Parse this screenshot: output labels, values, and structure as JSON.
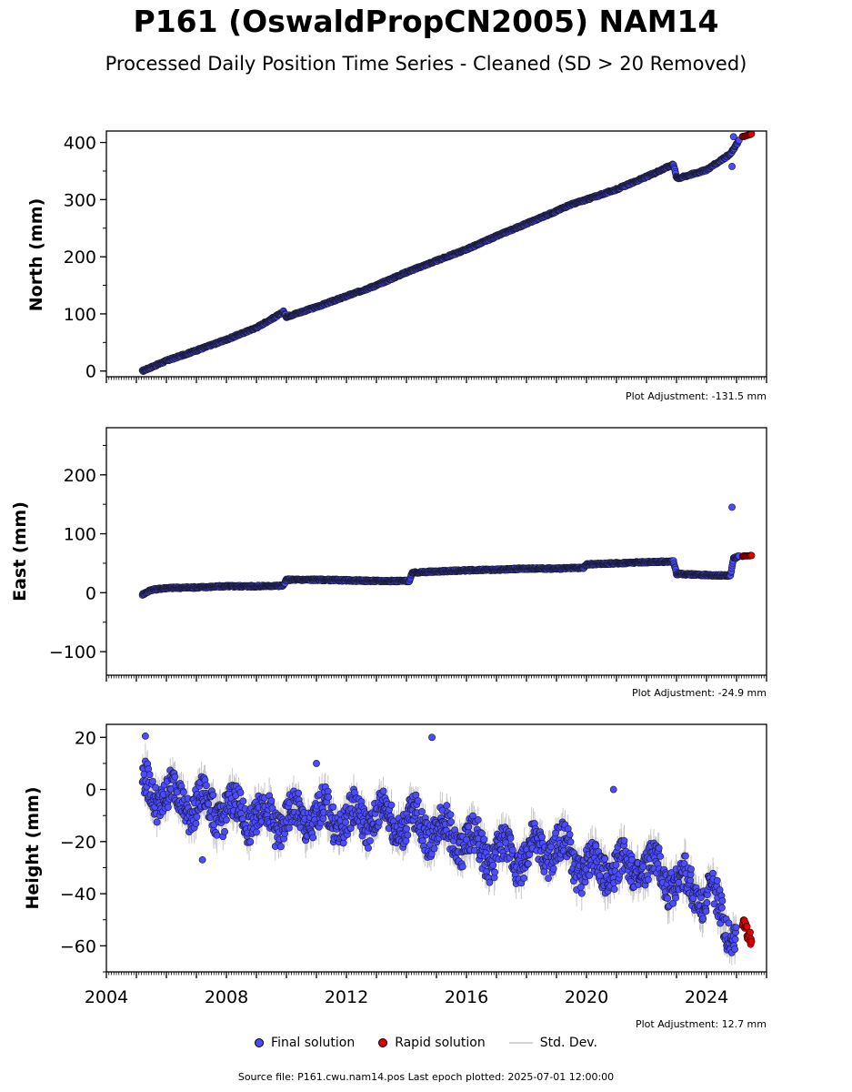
{
  "title": "P161 (OswaldPropCN2005) NAM14",
  "subtitle": "Processed Daily Position Time Series - Cleaned (SD > 20 Removed)",
  "footer": "Source file: P161.cwu.nam14.pos  Last epoch plotted: 2025-07-01 12:00:00",
  "legend": {
    "final_label": "Final solution",
    "rapid_label": "Rapid solution",
    "std_label": "Std. Dev.",
    "final_color": "#4b4bff",
    "rapid_color": "#e00000",
    "std_color": "#c8c8c8"
  },
  "chart_data": [
    {
      "type": "scatter",
      "ylabel": "North (mm)",
      "adjustment": "Plot Adjustment: -131.5 mm",
      "xlim": [
        2004,
        2026
      ],
      "ylim": [
        -10,
        420
      ],
      "yticks": [
        0,
        100,
        200,
        300,
        400
      ],
      "series": [
        {
          "name": "Final solution",
          "x": [
            2005.2,
            2006,
            2007,
            2008,
            2009,
            2009.8,
            2009.9,
            2010,
            2011,
            2012,
            2013,
            2014,
            2015,
            2016,
            2017,
            2018,
            2019,
            2019.4,
            2020,
            2021,
            2022,
            2022.9,
            2023.0,
            2023.1,
            2024,
            2024.8,
            2025.1
          ],
          "y": [
            0,
            18,
            36,
            55,
            76,
            100,
            104,
            95,
            112,
            131,
            150,
            173,
            193,
            213,
            236,
            258,
            280,
            290,
            300,
            318,
            340,
            362,
            338,
            338,
            352,
            380,
            405
          ]
        },
        {
          "name": "Rapid solution",
          "x": [
            2025.2,
            2025.5
          ],
          "y": [
            410,
            415
          ]
        }
      ],
      "outliers": [
        {
          "x": 2024.85,
          "y": 358
        },
        {
          "x": 2024.9,
          "y": 410
        }
      ]
    },
    {
      "type": "scatter",
      "ylabel": "East (mm)",
      "adjustment": "Plot Adjustment: -24.9 mm",
      "xlim": [
        2004,
        2026
      ],
      "ylim": [
        -140,
        280
      ],
      "yticks": [
        -100,
        0,
        100,
        200
      ],
      "series": [
        {
          "name": "Final solution",
          "x": [
            2005.2,
            2005.5,
            2006,
            2007,
            2008,
            2009,
            2009.9,
            2010,
            2011,
            2012,
            2013,
            2014.1,
            2014.2,
            2015,
            2016,
            2017,
            2018,
            2019,
            2019.9,
            2020,
            2021,
            2022,
            2022.9,
            2023,
            2024,
            2024.8,
            2024.9,
            2025.1
          ],
          "y": [
            -3,
            5,
            8,
            9,
            11,
            11,
            12,
            22,
            22,
            21,
            20,
            20,
            34,
            36,
            38,
            39,
            41,
            41,
            42,
            48,
            50,
            52,
            53,
            32,
            30,
            29,
            58,
            62
          ]
        },
        {
          "name": "Rapid solution",
          "x": [
            2025.2,
            2025.5
          ],
          "y": [
            62,
            63
          ]
        }
      ],
      "outliers": [
        {
          "x": 2024.85,
          "y": 145
        }
      ]
    },
    {
      "type": "scatter",
      "ylabel": "Height (mm)",
      "adjustment": "Plot Adjustment: 12.7 mm",
      "xlim": [
        2004,
        2026
      ],
      "ylim": [
        -70,
        25
      ],
      "yticks": [
        -60,
        -40,
        -20,
        0,
        20
      ],
      "xticks": [
        2004,
        2008,
        2012,
        2016,
        2020,
        2024
      ],
      "series": [
        {
          "name": "Final solution",
          "x": [
            2005.2,
            2006,
            2007,
            2008,
            2009,
            2010,
            2011,
            2012,
            2013,
            2014,
            2015,
            2016,
            2017,
            2018,
            2019,
            2020,
            2021,
            2022,
            2023,
            2024,
            2025
          ],
          "y": [
            0,
            -2,
            -6,
            -8,
            -10,
            -12,
            -10,
            -12,
            -10,
            -13,
            -15,
            -20,
            -25,
            -25,
            -22,
            -30,
            -30,
            -30,
            -35,
            -40,
            -55
          ]
        },
        {
          "name": "Rapid solution",
          "x": [
            2025.2,
            2025.35,
            2025.5
          ],
          "y": [
            -50,
            -55,
            -58
          ]
        }
      ],
      "outliers": [
        {
          "x": 2005.3,
          "y": 20.5
        },
        {
          "x": 2014.85,
          "y": 20
        },
        {
          "x": 2020.9,
          "y": 0
        },
        {
          "x": 2007.2,
          "y": -27
        },
        {
          "x": 2011,
          "y": 10
        }
      ]
    }
  ]
}
